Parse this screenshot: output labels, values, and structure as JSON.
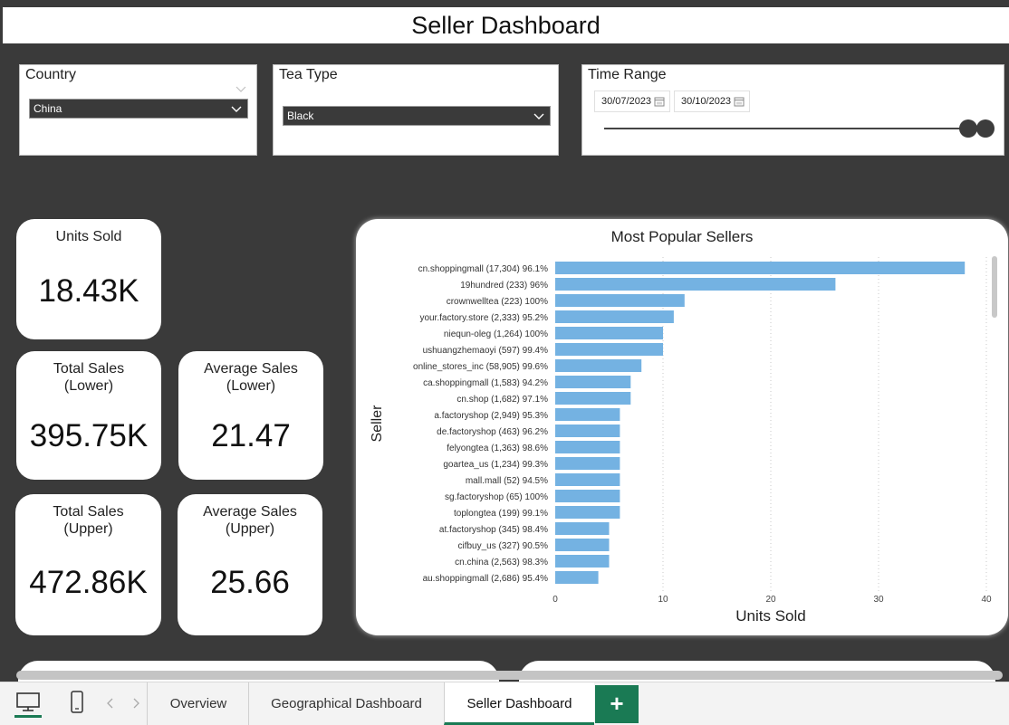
{
  "page": {
    "title": "Seller Dashboard"
  },
  "filters": {
    "country": {
      "label": "Country",
      "value": "China"
    },
    "tea_type": {
      "label": "Tea Type",
      "value": "Black"
    },
    "time_range": {
      "label": "Time Range",
      "start": "30/07/2023",
      "end": "30/10/2023"
    }
  },
  "kpis": {
    "units_sold": {
      "label": "Units Sold",
      "value": "18.43K"
    },
    "total_sales_lower": {
      "label_line1": "Total Sales",
      "label_line2": "(Lower)",
      "value": "395.75K"
    },
    "average_sales_lower": {
      "label_line1": "Average Sales",
      "label_line2": "(Lower)",
      "value": "21.47"
    },
    "total_sales_upper": {
      "label_line1": "Total Sales",
      "label_line2": "(Upper)",
      "value": "472.86K"
    },
    "average_sales_upper": {
      "label_line1": "Average Sales",
      "label_line2": "(Upper)",
      "value": "25.66"
    }
  },
  "chart_data": {
    "type": "bar",
    "orientation": "horizontal",
    "title": "Most Popular Sellers",
    "xlabel": "Units Sold",
    "ylabel": "Seller",
    "xlim": [
      0,
      40
    ],
    "xticks": [
      0,
      10,
      20,
      30,
      40
    ],
    "grid": "vertical dotted",
    "color": "#74b2e2",
    "categories": [
      "cn.shoppingmall (17,304) 96.1%",
      "19hundred (233) 96%",
      "crownwelltea (223) 100%",
      "your.factory.store (2,333) 95.2%",
      "niequn-oleg (1,264) 100%",
      "ushuangzhemaoyi (597) 99.4%",
      "online_stores_inc (58,905) 99.6%",
      "ca.shoppingmall (1,583) 94.2%",
      "cn.shop (1,682) 97.1%",
      "a.factoryshop (2,949) 95.3%",
      "de.factoryshop (463) 96.2%",
      "felyongtea (1,363) 98.6%",
      "goartea_us (1,234) 99.3%",
      "mall.mall (52) 94.5%",
      "sg.factoryshop (65) 100%",
      "toplongtea (199) 99.1%",
      "at.factoryshop (345) 98.4%",
      "cifbuy_us (327) 90.5%",
      "cn.china (2,563) 98.3%",
      "au.shoppingmall (2,686) 95.4%"
    ],
    "values": [
      38,
      26,
      12,
      11,
      10,
      10,
      8,
      7,
      7,
      6,
      6,
      6,
      6,
      6,
      6,
      6,
      5,
      5,
      5,
      4
    ]
  },
  "tabs": {
    "overview": "Overview",
    "geographical": "Geographical Dashboard",
    "seller": "Seller Dashboard",
    "add": "+"
  },
  "colors": {
    "accent": "#1a7a54",
    "background": "#3a3a3a",
    "bar": "#74b2e2"
  }
}
